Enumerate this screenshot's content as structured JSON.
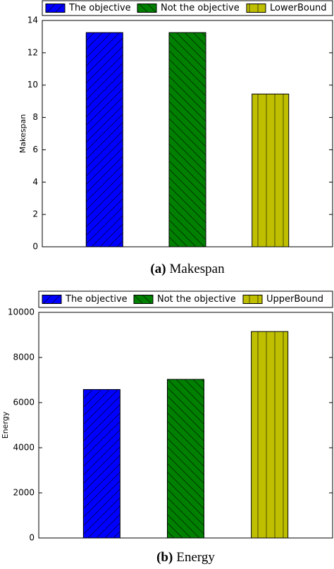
{
  "chart_data": [
    {
      "type": "bar",
      "ylabel": "Makespan",
      "caption_label": "(a)",
      "caption": "Makespan",
      "ylim": [
        0,
        14
      ],
      "yticks": [
        0,
        2,
        4,
        6,
        8,
        10,
        12,
        14
      ],
      "series": [
        {
          "name": "The objective",
          "color": "#0000ff",
          "hatch": "/",
          "values": [
            13.25
          ]
        },
        {
          "name": "Not the objective",
          "color": "#008000",
          "hatch": "\\",
          "values": [
            13.25
          ]
        },
        {
          "name": "LowerBound",
          "color": "#bfbf00",
          "hatch": "|",
          "values": [
            9.45
          ]
        }
      ]
    },
    {
      "type": "bar",
      "ylabel": "Energy",
      "caption_label": "(b)",
      "caption": "Energy",
      "ylim": [
        0,
        10000
      ],
      "yticks": [
        0,
        2000,
        4000,
        6000,
        8000,
        10000
      ],
      "series": [
        {
          "name": "The objective",
          "color": "#0000ff",
          "hatch": "/",
          "values": [
            6580
          ]
        },
        {
          "name": "Not the objective",
          "color": "#008000",
          "hatch": "\\",
          "values": [
            7030
          ]
        },
        {
          "name": "UpperBound",
          "color": "#bfbf00",
          "hatch": "|",
          "values": [
            9150
          ]
        }
      ]
    }
  ]
}
